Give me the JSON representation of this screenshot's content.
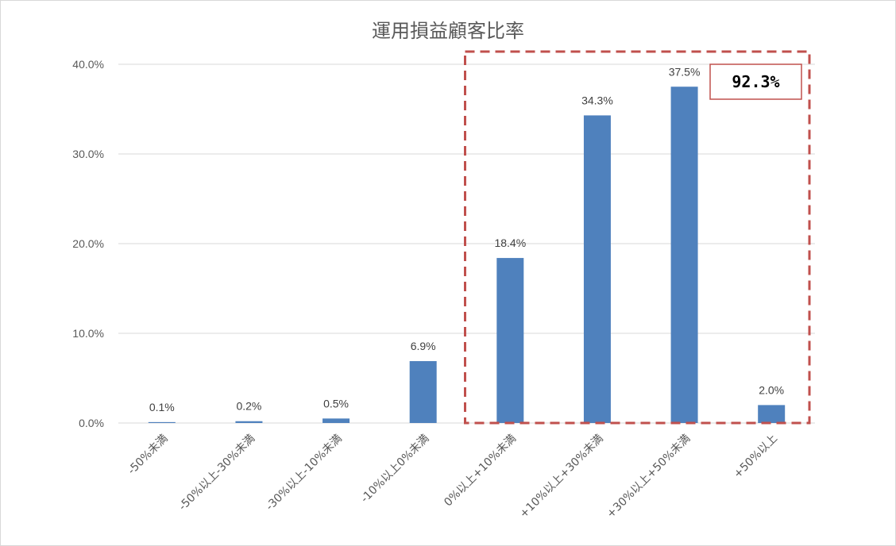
{
  "chart_data": {
    "type": "bar",
    "title": "運用損益顧客比率",
    "categories": [
      "-50%未満",
      "-50%以上-30%未満",
      "-30%以上-10%未満",
      "-10%以上0%未満",
      "0%以上+10%未満",
      "+10%以上+30%未満",
      "+30%以上+50%未満",
      "+50%以上"
    ],
    "values": [
      0.1,
      0.2,
      0.5,
      6.9,
      18.4,
      34.3,
      37.5,
      2.0
    ],
    "data_labels": [
      "0.1%",
      "0.2%",
      "0.5%",
      "6.9%",
      "18.4%",
      "34.3%",
      "37.5%",
      "2.0%"
    ],
    "yticks": [
      0,
      10,
      20,
      30,
      40
    ],
    "ytick_labels": [
      "0.0%",
      "10.0%",
      "20.0%",
      "30.0%",
      "40.0%"
    ],
    "ylim": [
      0,
      40
    ],
    "xlabel": "",
    "ylabel": "",
    "grid": true,
    "bar_color": "#4f81bd",
    "highlight": {
      "from_category_index": 4,
      "to_category_index": 7,
      "callout_text": "92.3%",
      "color": "#c0504d"
    }
  }
}
